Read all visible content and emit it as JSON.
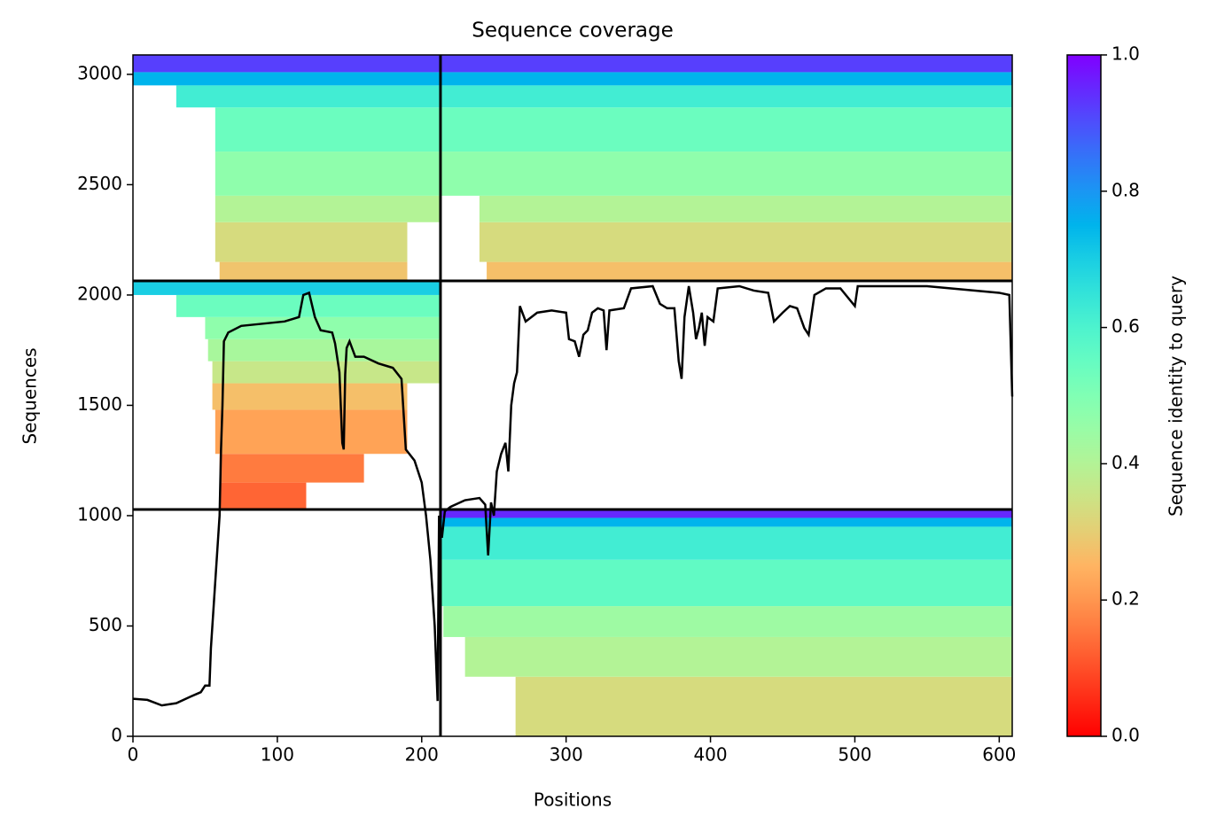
{
  "chart_data": {
    "type": "coverage",
    "title": "Sequence coverage",
    "xlabel": "Positions",
    "ylabel": "Sequences",
    "colorbar_label": "Sequence identity to query",
    "colormap": "rainbow_r",
    "xlim": [
      0,
      609
    ],
    "ylim": [
      0,
      3088
    ],
    "xticks": [
      0,
      100,
      200,
      300,
      400,
      500,
      600
    ],
    "yticks": [
      0,
      500,
      1000,
      1500,
      2000,
      2500,
      3000
    ],
    "clim": [
      0,
      1
    ],
    "cticks": [
      {
        "value": 0,
        "label": "0.0"
      },
      {
        "value": 0.2,
        "label": "0.2"
      },
      {
        "value": 0.4,
        "label": "0.4"
      },
      {
        "value": 0.6,
        "label": "0.6"
      },
      {
        "value": 0.8,
        "label": "0.8"
      },
      {
        "value": 1,
        "label": "1.0"
      }
    ],
    "dividers": {
      "x": [
        213
      ],
      "y": [
        1028,
        2064
      ]
    },
    "segments": [
      {
        "x": [
          265,
          609
        ],
        "y": [
          0,
          270
        ],
        "identity": 0.33
      },
      {
        "x": [
          230,
          609
        ],
        "y": [
          270,
          450
        ],
        "identity": 0.4
      },
      {
        "x": [
          215,
          609
        ],
        "y": [
          450,
          590
        ],
        "identity": 0.44
      },
      {
        "x": [
          213,
          609
        ],
        "y": [
          590,
          800
        ],
        "identity": 0.56
      },
      {
        "x": [
          213,
          609
        ],
        "y": [
          800,
          950
        ],
        "identity": 0.62
      },
      {
        "x": [
          213,
          609
        ],
        "y": [
          950,
          990
        ],
        "identity": 0.75
      },
      {
        "x": [
          213,
          609
        ],
        "y": [
          990,
          1028
        ],
        "identity": 0.95
      },
      {
        "x": [
          60,
          120
        ],
        "y": [
          1028,
          1150
        ],
        "identity": 0.13
      },
      {
        "x": [
          60,
          160
        ],
        "y": [
          1150,
          1280
        ],
        "identity": 0.16
      },
      {
        "x": [
          57,
          190
        ],
        "y": [
          1280,
          1480
        ],
        "identity": 0.22
      },
      {
        "x": [
          55,
          190
        ],
        "y": [
          1480,
          1600
        ],
        "identity": 0.27
      },
      {
        "x": [
          55,
          213
        ],
        "y": [
          1600,
          1700
        ],
        "identity": 0.36
      },
      {
        "x": [
          52,
          213
        ],
        "y": [
          1700,
          1800
        ],
        "identity": 0.42
      },
      {
        "x": [
          50,
          213
        ],
        "y": [
          1800,
          1900
        ],
        "identity": 0.47
      },
      {
        "x": [
          30,
          213
        ],
        "y": [
          1900,
          2000
        ],
        "identity": 0.54
      },
      {
        "x": [
          0,
          213
        ],
        "y": [
          2000,
          2064
        ],
        "identity": 0.7
      },
      {
        "x": [
          60,
          190
        ],
        "y": [
          2064,
          2150
        ],
        "identity": 0.28
      },
      {
        "x": [
          245,
          609
        ],
        "y": [
          2064,
          2150
        ],
        "identity": 0.27
      },
      {
        "x": [
          57,
          190
        ],
        "y": [
          2150,
          2330
        ],
        "identity": 0.33
      },
      {
        "x": [
          240,
          609
        ],
        "y": [
          2150,
          2330
        ],
        "identity": 0.33
      },
      {
        "x": [
          57,
          213
        ],
        "y": [
          2330,
          2450
        ],
        "identity": 0.4
      },
      {
        "x": [
          240,
          609
        ],
        "y": [
          2330,
          2450
        ],
        "identity": 0.4
      },
      {
        "x": [
          57,
          609
        ],
        "y": [
          2450,
          2650
        ],
        "identity": 0.47
      },
      {
        "x": [
          57,
          609
        ],
        "y": [
          2650,
          2850
        ],
        "identity": 0.54
      },
      {
        "x": [
          30,
          609
        ],
        "y": [
          2850,
          2950
        ],
        "identity": 0.62
      },
      {
        "x": [
          0,
          609
        ],
        "y": [
          2950,
          3010
        ],
        "identity": 0.75
      },
      {
        "x": [
          0,
          609
        ],
        "y": [
          3010,
          3088
        ],
        "identity": 0.92
      }
    ],
    "coverage": {
      "color": "#000000",
      "x": [
        0,
        10,
        20,
        30,
        40,
        47,
        50,
        53,
        54,
        56,
        58,
        60,
        61,
        62,
        63,
        66,
        75,
        90,
        105,
        115,
        118,
        122,
        126,
        130,
        138,
        140,
        143,
        145,
        146,
        147,
        148,
        150,
        154,
        160,
        170,
        180,
        186,
        189,
        195,
        200,
        203,
        206,
        209,
        211,
        212,
        214,
        216,
        220,
        230,
        240,
        244,
        246,
        248,
        250,
        252,
        255,
        258,
        260,
        262,
        264,
        266,
        268,
        272,
        280,
        290,
        300,
        302,
        306,
        309,
        312,
        315,
        318,
        322,
        326,
        328,
        330,
        340,
        345,
        360,
        365,
        370,
        375,
        378,
        380,
        382,
        385,
        388,
        390,
        392,
        394,
        396,
        398,
        402,
        405,
        420,
        430,
        440,
        444,
        450,
        455,
        460,
        465,
        468,
        472,
        480,
        490,
        500,
        502,
        550,
        600,
        607,
        609
      ],
      "values": [
        170,
        165,
        140,
        150,
        180,
        200,
        230,
        230,
        400,
        600,
        800,
        1000,
        1300,
        1500,
        1790,
        1830,
        1860,
        1870,
        1880,
        1900,
        2000,
        2010,
        1900,
        1840,
        1830,
        1780,
        1650,
        1330,
        1300,
        1640,
        1760,
        1790,
        1720,
        1720,
        1690,
        1670,
        1620,
        1300,
        1250,
        1150,
        1000,
        800,
        500,
        160,
        1000,
        900,
        1020,
        1040,
        1070,
        1080,
        1050,
        820,
        1060,
        1000,
        1200,
        1280,
        1330,
        1200,
        1500,
        1600,
        1650,
        1950,
        1880,
        1920,
        1930,
        1920,
        1800,
        1790,
        1720,
        1820,
        1840,
        1920,
        1940,
        1930,
        1750,
        1930,
        1940,
        2030,
        2040,
        1960,
        1940,
        1940,
        1700,
        1620,
        1900,
        2040,
        1920,
        1800,
        1850,
        1920,
        1770,
        1900,
        1880,
        2030,
        2040,
        2020,
        2010,
        1880,
        1920,
        1950,
        1940,
        1850,
        1820,
        2000,
        2030,
        2030,
        1950,
        2040,
        2040,
        2010,
        2000,
        1540
      ]
    }
  }
}
